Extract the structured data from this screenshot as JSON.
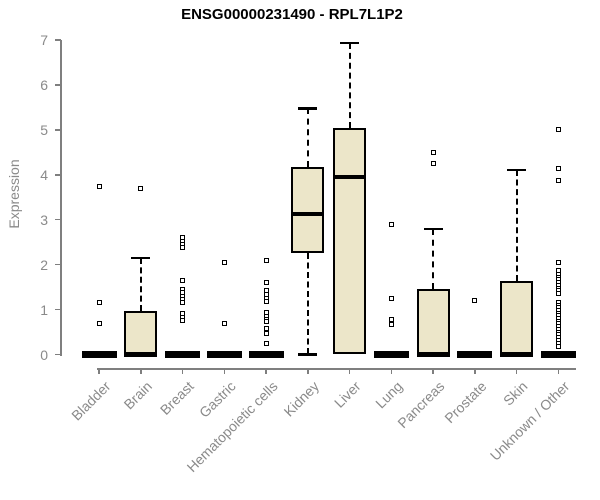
{
  "chart_data": {
    "type": "boxplot",
    "title": "ENSG00000231490 - RPL7L1P2",
    "xlabel": "",
    "ylabel": "Expression",
    "ylim": [
      0,
      7
    ],
    "y_axis": {
      "ticks": [
        0,
        1,
        2,
        3,
        4,
        5,
        6,
        7
      ]
    },
    "grid": false,
    "legend": false,
    "colors": {
      "box_fill": "#ECE6C9",
      "box_line": "#000000",
      "axis": "#7f7f7f",
      "tick_text": "#8a8a8a",
      "title_text": "#000000"
    },
    "categories": [
      "Bladder",
      "Brain",
      "Breast",
      "Gastric",
      "Hematopoietic cells",
      "Kidney",
      "Liver",
      "Lung",
      "Pancreas",
      "Prostate",
      "Skin",
      "Unknown / Other"
    ],
    "series": [
      {
        "category": "Bladder",
        "q1": 0,
        "median": 0,
        "q3": 0,
        "whisker_low": 0,
        "whisker_high": 0,
        "outliers": [
          3.75,
          1.15,
          0.7
        ]
      },
      {
        "category": "Brain",
        "q1": 0,
        "median": 0,
        "q3": 0.97,
        "whisker_low": 0,
        "whisker_high": 2.15,
        "outliers": [
          3.7
        ]
      },
      {
        "category": "Breast",
        "q1": 0,
        "median": 0,
        "q3": 0,
        "whisker_low": 0,
        "whisker_high": 0,
        "outliers": [
          2.6,
          2.52,
          2.45,
          2.38,
          1.65,
          1.45,
          1.38,
          1.3,
          1.22,
          1.15,
          0.92,
          0.82,
          0.75
        ]
      },
      {
        "category": "Gastric",
        "q1": 0,
        "median": 0,
        "q3": 0,
        "whisker_low": 0,
        "whisker_high": 0,
        "outliers": [
          2.05,
          0.7
        ]
      },
      {
        "category": "Hematopoietic cells",
        "q1": 0,
        "median": 0,
        "q3": 0,
        "whisker_low": 0,
        "whisker_high": 0,
        "outliers": [
          2.1,
          1.6,
          1.42,
          1.33,
          1.25,
          1.17,
          0.93,
          0.85,
          0.79,
          0.73,
          0.58,
          0.47,
          0.25
        ]
      },
      {
        "category": "Kidney",
        "q1": 2.27,
        "median": 3.13,
        "q3": 4.18,
        "whisker_low": 0,
        "whisker_high": 5.48,
        "outliers": []
      },
      {
        "category": "Liver",
        "q1": 0,
        "median": 3.95,
        "q3": 5.04,
        "whisker_low": 0,
        "whisker_high": 6.93,
        "outliers": []
      },
      {
        "category": "Lung",
        "q1": 0,
        "median": 0,
        "q3": 0,
        "whisker_low": 0,
        "whisker_high": 0,
        "outliers": [
          2.9,
          1.25,
          0.77,
          0.66
        ]
      },
      {
        "category": "Pancreas",
        "q1": 0,
        "median": 0,
        "q3": 1.46,
        "whisker_low": 0,
        "whisker_high": 2.79,
        "outliers": [
          4.49,
          4.26
        ]
      },
      {
        "category": "Prostate",
        "q1": 0,
        "median": 0,
        "q3": 0,
        "whisker_low": 0,
        "whisker_high": 0,
        "outliers": [
          1.21
        ]
      },
      {
        "category": "Skin",
        "q1": 0,
        "median": 0,
        "q3": 1.64,
        "whisker_low": 0,
        "whisker_high": 4.11,
        "outliers": []
      },
      {
        "category": "Unknown / Other",
        "q1": 0,
        "median": 0,
        "q3": 0,
        "whisker_low": 0,
        "whisker_high": 0,
        "outliers": [
          5.0,
          4.15,
          3.87,
          2.05,
          1.86,
          1.79,
          1.72,
          1.66,
          1.6,
          1.54,
          1.48,
          1.42,
          1.35,
          1.16,
          1.1,
          1.04,
          0.98,
          0.92,
          0.86,
          0.8,
          0.74,
          0.68,
          0.62,
          0.56,
          0.5,
          0.44,
          0.38,
          0.31,
          0.24,
          0.18
        ]
      }
    ]
  }
}
